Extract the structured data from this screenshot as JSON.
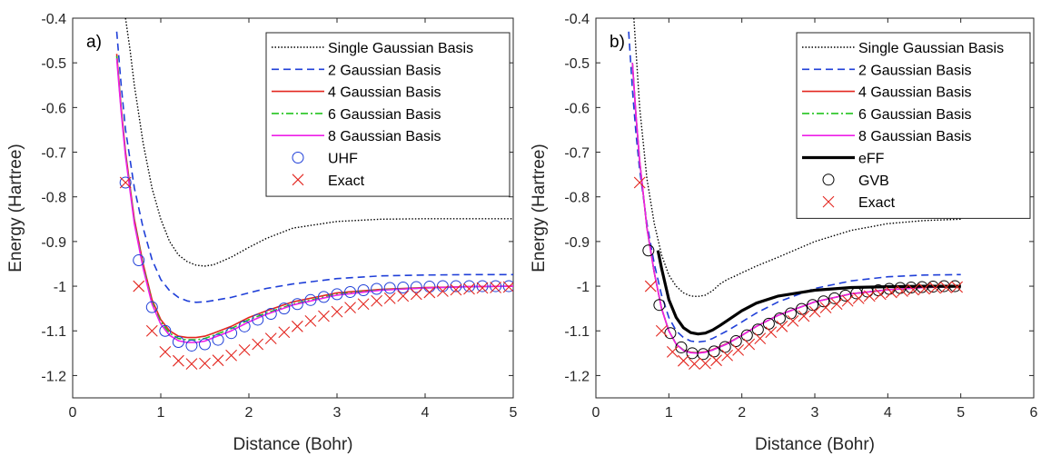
{
  "chart_data": [
    {
      "type": "line",
      "panel_label": "a)",
      "xlabel": "Distance (Bohr)",
      "ylabel": "Energy (Hartree)",
      "xlim": [
        0,
        5
      ],
      "ylim": [
        -1.25,
        -0.4
      ],
      "xticks": [
        0,
        1,
        2,
        3,
        4,
        5
      ],
      "xtick_labels": [
        "0",
        "1",
        "2",
        "3",
        "4",
        "5"
      ],
      "yticks": [
        -0.4,
        -0.5,
        -0.6,
        -0.7,
        -0.8,
        -0.9,
        -1.0,
        -1.1,
        -1.2
      ],
      "ytick_labels": [
        "-0.4",
        "-0.5",
        "-0.6",
        "-0.7",
        "-0.8",
        "-0.9",
        "-1",
        "-1.1",
        "-1.2"
      ],
      "grid": false,
      "legend_position": "top-right",
      "series": [
        {
          "name": "Single Gaussian Basis",
          "style": "dotted",
          "color": "#000000",
          "x": [
            0.6,
            0.65,
            0.7,
            0.8,
            0.9,
            1.0,
            1.1,
            1.2,
            1.3,
            1.4,
            1.5,
            1.6,
            1.8,
            2.0,
            2.2,
            2.5,
            3.0,
            3.5,
            4.0,
            4.5,
            5.0
          ],
          "y": [
            -0.4,
            -0.47,
            -0.55,
            -0.68,
            -0.78,
            -0.85,
            -0.9,
            -0.93,
            -0.945,
            -0.953,
            -0.955,
            -0.952,
            -0.935,
            -0.913,
            -0.893,
            -0.87,
            -0.855,
            -0.85,
            -0.849,
            -0.849,
            -0.849
          ]
        },
        {
          "name": "2 Gaussian Basis",
          "style": "dashed",
          "color": "#1f3fd8",
          "x": [
            0.5,
            0.55,
            0.6,
            0.7,
            0.8,
            0.9,
            1.0,
            1.1,
            1.2,
            1.3,
            1.4,
            1.5,
            1.6,
            1.8,
            2.0,
            2.2,
            2.5,
            3.0,
            3.5,
            4.0,
            4.5,
            5.0
          ],
          "y": [
            -0.43,
            -0.55,
            -0.65,
            -0.78,
            -0.87,
            -0.94,
            -0.985,
            -1.01,
            -1.025,
            -1.033,
            -1.036,
            -1.035,
            -1.032,
            -1.025,
            -1.015,
            -1.005,
            -0.995,
            -0.983,
            -0.977,
            -0.975,
            -0.974,
            -0.974
          ]
        },
        {
          "name": "4 Gaussian Basis",
          "style": "solid",
          "color": "#e3261f",
          "x": [
            0.5,
            0.55,
            0.6,
            0.7,
            0.8,
            0.9,
            1.0,
            1.1,
            1.2,
            1.3,
            1.4,
            1.5,
            1.6,
            1.8,
            2.0,
            2.2,
            2.5,
            3.0,
            3.5,
            4.0,
            4.5,
            5.0
          ],
          "y": [
            -0.48,
            -0.6,
            -0.7,
            -0.85,
            -0.95,
            -1.03,
            -1.075,
            -1.1,
            -1.112,
            -1.115,
            -1.115,
            -1.112,
            -1.105,
            -1.09,
            -1.07,
            -1.055,
            -1.035,
            -1.015,
            -1.007,
            -1.003,
            -1.001,
            -1.0
          ]
        },
        {
          "name": "6 Gaussian Basis",
          "style": "dashdot",
          "color": "#22c41f",
          "x": [
            0.5,
            0.55,
            0.6,
            0.7,
            0.8,
            0.9,
            1.0,
            1.1,
            1.2,
            1.3,
            1.4,
            1.5,
            1.6,
            1.8,
            2.0,
            2.2,
            2.5,
            3.0,
            3.5,
            4.0,
            4.5,
            5.0
          ],
          "y": [
            -0.485,
            -0.605,
            -0.705,
            -0.855,
            -0.955,
            -1.035,
            -1.08,
            -1.105,
            -1.117,
            -1.12,
            -1.12,
            -1.117,
            -1.11,
            -1.095,
            -1.075,
            -1.06,
            -1.04,
            -1.018,
            -1.008,
            -1.004,
            -1.001,
            -1.0
          ]
        },
        {
          "name": "8 Gaussian Basis",
          "style": "solid",
          "color": "#ee1ee8",
          "x": [
            0.5,
            0.55,
            0.6,
            0.7,
            0.8,
            0.9,
            1.0,
            1.1,
            1.2,
            1.3,
            1.4,
            1.5,
            1.6,
            1.8,
            2.0,
            2.2,
            2.5,
            3.0,
            3.5,
            4.0,
            4.5,
            5.0
          ],
          "y": [
            -0.49,
            -0.61,
            -0.71,
            -0.86,
            -0.96,
            -1.04,
            -1.085,
            -1.11,
            -1.122,
            -1.126,
            -1.126,
            -1.123,
            -1.115,
            -1.1,
            -1.08,
            -1.063,
            -1.042,
            -1.02,
            -1.009,
            -1.004,
            -1.001,
            -1.0
          ]
        },
        {
          "name": "UHF",
          "style": "marker-circle",
          "color": "#1f3fd8",
          "x": [
            0.6,
            0.75,
            0.9,
            1.05,
            1.2,
            1.35,
            1.5,
            1.65,
            1.8,
            1.95,
            2.1,
            2.25,
            2.4,
            2.55,
            2.7,
            2.85,
            3.0,
            3.15,
            3.3,
            3.45,
            3.6,
            3.75,
            3.9,
            4.05,
            4.2,
            4.35,
            4.5,
            4.65,
            4.8,
            4.95
          ],
          "y": [
            -0.768,
            -0.942,
            -1.047,
            -1.1,
            -1.125,
            -1.133,
            -1.13,
            -1.12,
            -1.105,
            -1.09,
            -1.075,
            -1.062,
            -1.05,
            -1.04,
            -1.031,
            -1.024,
            -1.018,
            -1.013,
            -1.009,
            -1.006,
            -1.004,
            -1.003,
            -1.002,
            -1.001,
            -1.0,
            -1.0,
            -1.0,
            -1.0,
            -1.0,
            -1.0
          ]
        },
        {
          "name": "Exact",
          "style": "marker-x",
          "color": "#e3261f",
          "x": [
            0.6,
            0.75,
            0.9,
            1.05,
            1.2,
            1.35,
            1.5,
            1.65,
            1.8,
            1.95,
            2.1,
            2.25,
            2.4,
            2.55,
            2.7,
            2.85,
            3.0,
            3.15,
            3.3,
            3.45,
            3.6,
            3.75,
            3.9,
            4.05,
            4.2,
            4.35,
            4.5,
            4.65,
            4.8,
            4.95
          ],
          "y": [
            -0.768,
            -1.0,
            -1.1,
            -1.147,
            -1.167,
            -1.174,
            -1.173,
            -1.166,
            -1.155,
            -1.143,
            -1.13,
            -1.117,
            -1.103,
            -1.09,
            -1.078,
            -1.067,
            -1.057,
            -1.048,
            -1.04,
            -1.033,
            -1.027,
            -1.022,
            -1.018,
            -1.014,
            -1.011,
            -1.008,
            -1.006,
            -1.004,
            -1.003,
            -1.002
          ]
        }
      ]
    },
    {
      "type": "line",
      "panel_label": "b)",
      "xlabel": "Distance (Bohr)",
      "ylabel": "Energy (Hartree)",
      "xlim": [
        0,
        6
      ],
      "ylim": [
        -1.25,
        -0.4
      ],
      "xticks": [
        0,
        1,
        2,
        3,
        4,
        5,
        6
      ],
      "xtick_labels": [
        "0",
        "1",
        "2",
        "3",
        "4",
        "5",
        "6"
      ],
      "yticks": [
        -0.4,
        -0.5,
        -0.6,
        -0.7,
        -0.8,
        -0.9,
        -1.0,
        -1.1,
        -1.2
      ],
      "ytick_labels": [
        "-0.4",
        "-0.5",
        "-0.6",
        "-0.7",
        "-0.8",
        "-0.9",
        "-1",
        "-1.1",
        "-1.2"
      ],
      "grid": false,
      "legend_position": "top-right",
      "series": [
        {
          "name": "Single Gaussian Basis",
          "style": "dotted",
          "color": "#000000",
          "x": [
            0.52,
            0.6,
            0.7,
            0.8,
            0.9,
            1.0,
            1.1,
            1.2,
            1.3,
            1.4,
            1.5,
            1.6,
            1.7,
            1.8,
            1.9,
            2.0,
            2.2,
            2.5,
            3.0,
            3.5,
            4.0,
            4.5,
            5.0
          ],
          "y": [
            -0.4,
            -0.6,
            -0.76,
            -0.86,
            -0.93,
            -0.975,
            -1.0,
            -1.015,
            -1.022,
            -1.023,
            -1.02,
            -1.01,
            -0.995,
            -0.985,
            -0.978,
            -0.97,
            -0.955,
            -0.935,
            -0.9,
            -0.875,
            -0.86,
            -0.853,
            -0.85
          ]
        },
        {
          "name": "2 Gaussian Basis",
          "style": "dashed",
          "color": "#1f3fd8",
          "x": [
            0.45,
            0.5,
            0.55,
            0.6,
            0.7,
            0.8,
            0.9,
            1.0,
            1.1,
            1.2,
            1.3,
            1.4,
            1.5,
            1.6,
            1.8,
            2.0,
            2.2,
            2.5,
            3.0,
            3.5,
            4.0,
            4.5,
            5.0
          ],
          "y": [
            -0.43,
            -0.56,
            -0.66,
            -0.74,
            -0.86,
            -0.95,
            -1.02,
            -1.07,
            -1.1,
            -1.115,
            -1.123,
            -1.125,
            -1.123,
            -1.117,
            -1.1,
            -1.08,
            -1.06,
            -1.035,
            -1.005,
            -0.988,
            -0.979,
            -0.975,
            -0.974
          ]
        },
        {
          "name": "4 Gaussian Basis",
          "style": "solid",
          "color": "#e3261f",
          "x": [
            0.5,
            0.55,
            0.6,
            0.7,
            0.8,
            0.9,
            1.0,
            1.1,
            1.2,
            1.3,
            1.4,
            1.5,
            1.6,
            1.8,
            2.0,
            2.2,
            2.5,
            3.0,
            3.5,
            4.0,
            4.5,
            5.0
          ],
          "y": [
            -0.5,
            -0.62,
            -0.72,
            -0.87,
            -0.97,
            -1.05,
            -1.1,
            -1.13,
            -1.143,
            -1.148,
            -1.149,
            -1.147,
            -1.142,
            -1.128,
            -1.11,
            -1.09,
            -1.065,
            -1.035,
            -1.017,
            -1.008,
            -1.003,
            -1.001
          ]
        },
        {
          "name": "6 Gaussian Basis",
          "style": "dashdot",
          "color": "#22c41f",
          "x": [
            0.5,
            0.55,
            0.6,
            0.7,
            0.8,
            0.9,
            1.0,
            1.1,
            1.2,
            1.3,
            1.4,
            1.5,
            1.6,
            1.8,
            2.0,
            2.2,
            2.5,
            3.0,
            3.5,
            4.0,
            4.5,
            5.0
          ],
          "y": [
            -0.5,
            -0.62,
            -0.72,
            -0.87,
            -0.97,
            -1.05,
            -1.1,
            -1.13,
            -1.143,
            -1.148,
            -1.15,
            -1.148,
            -1.143,
            -1.129,
            -1.11,
            -1.09,
            -1.065,
            -1.035,
            -1.017,
            -1.008,
            -1.003,
            -1.001
          ]
        },
        {
          "name": "8 Gaussian Basis",
          "style": "solid",
          "color": "#ee1ee8",
          "x": [
            0.5,
            0.55,
            0.6,
            0.7,
            0.8,
            0.9,
            1.0,
            1.1,
            1.2,
            1.3,
            1.4,
            1.5,
            1.6,
            1.8,
            2.0,
            2.2,
            2.5,
            3.0,
            3.5,
            4.0,
            4.5,
            5.0
          ],
          "y": [
            -0.5,
            -0.62,
            -0.72,
            -0.87,
            -0.97,
            -1.05,
            -1.1,
            -1.13,
            -1.144,
            -1.149,
            -1.15,
            -1.148,
            -1.143,
            -1.129,
            -1.11,
            -1.09,
            -1.065,
            -1.035,
            -1.017,
            -1.008,
            -1.003,
            -1.001
          ]
        },
        {
          "name": "eFF",
          "style": "thick",
          "color": "#000000",
          "x": [
            0.85,
            0.9,
            1.0,
            1.1,
            1.2,
            1.3,
            1.4,
            1.5,
            1.6,
            1.7,
            1.8,
            2.0,
            2.2,
            2.5,
            3.0,
            3.5,
            4.0,
            4.5,
            5.0
          ],
          "y": [
            -0.92,
            -0.96,
            -1.03,
            -1.07,
            -1.093,
            -1.104,
            -1.107,
            -1.105,
            -1.098,
            -1.088,
            -1.077,
            -1.055,
            -1.038,
            -1.022,
            -1.009,
            -1.003,
            -1.001,
            -1.0,
            -1.0
          ]
        },
        {
          "name": "GVB",
          "style": "marker-circle",
          "color": "#000000",
          "x": [
            0.72,
            0.87,
            1.02,
            1.17,
            1.32,
            1.47,
            1.62,
            1.77,
            1.92,
            2.07,
            2.22,
            2.37,
            2.52,
            2.67,
            2.82,
            2.97,
            3.12,
            3.27,
            3.42,
            3.57,
            3.72,
            3.87,
            4.02,
            4.17,
            4.32,
            4.47,
            4.62,
            4.77,
            4.92
          ],
          "y": [
            -0.92,
            -1.042,
            -1.105,
            -1.137,
            -1.15,
            -1.152,
            -1.146,
            -1.136,
            -1.123,
            -1.11,
            -1.097,
            -1.084,
            -1.072,
            -1.061,
            -1.051,
            -1.042,
            -1.034,
            -1.027,
            -1.021,
            -1.016,
            -1.012,
            -1.009,
            -1.006,
            -1.004,
            -1.003,
            -1.002,
            -1.001,
            -1.0,
            -1.0
          ]
        },
        {
          "name": "Exact",
          "style": "marker-x",
          "color": "#e3261f",
          "x": [
            0.6,
            0.75,
            0.9,
            1.05,
            1.2,
            1.35,
            1.5,
            1.65,
            1.8,
            1.95,
            2.1,
            2.25,
            2.4,
            2.55,
            2.7,
            2.85,
            3.0,
            3.15,
            3.3,
            3.45,
            3.6,
            3.75,
            3.9,
            4.05,
            4.2,
            4.35,
            4.5,
            4.65,
            4.8,
            4.95
          ],
          "y": [
            -0.768,
            -1.0,
            -1.1,
            -1.147,
            -1.167,
            -1.174,
            -1.173,
            -1.166,
            -1.155,
            -1.143,
            -1.13,
            -1.117,
            -1.103,
            -1.09,
            -1.078,
            -1.067,
            -1.057,
            -1.048,
            -1.04,
            -1.033,
            -1.027,
            -1.022,
            -1.018,
            -1.014,
            -1.011,
            -1.008,
            -1.006,
            -1.004,
            -1.003,
            -1.002
          ]
        }
      ]
    }
  ]
}
